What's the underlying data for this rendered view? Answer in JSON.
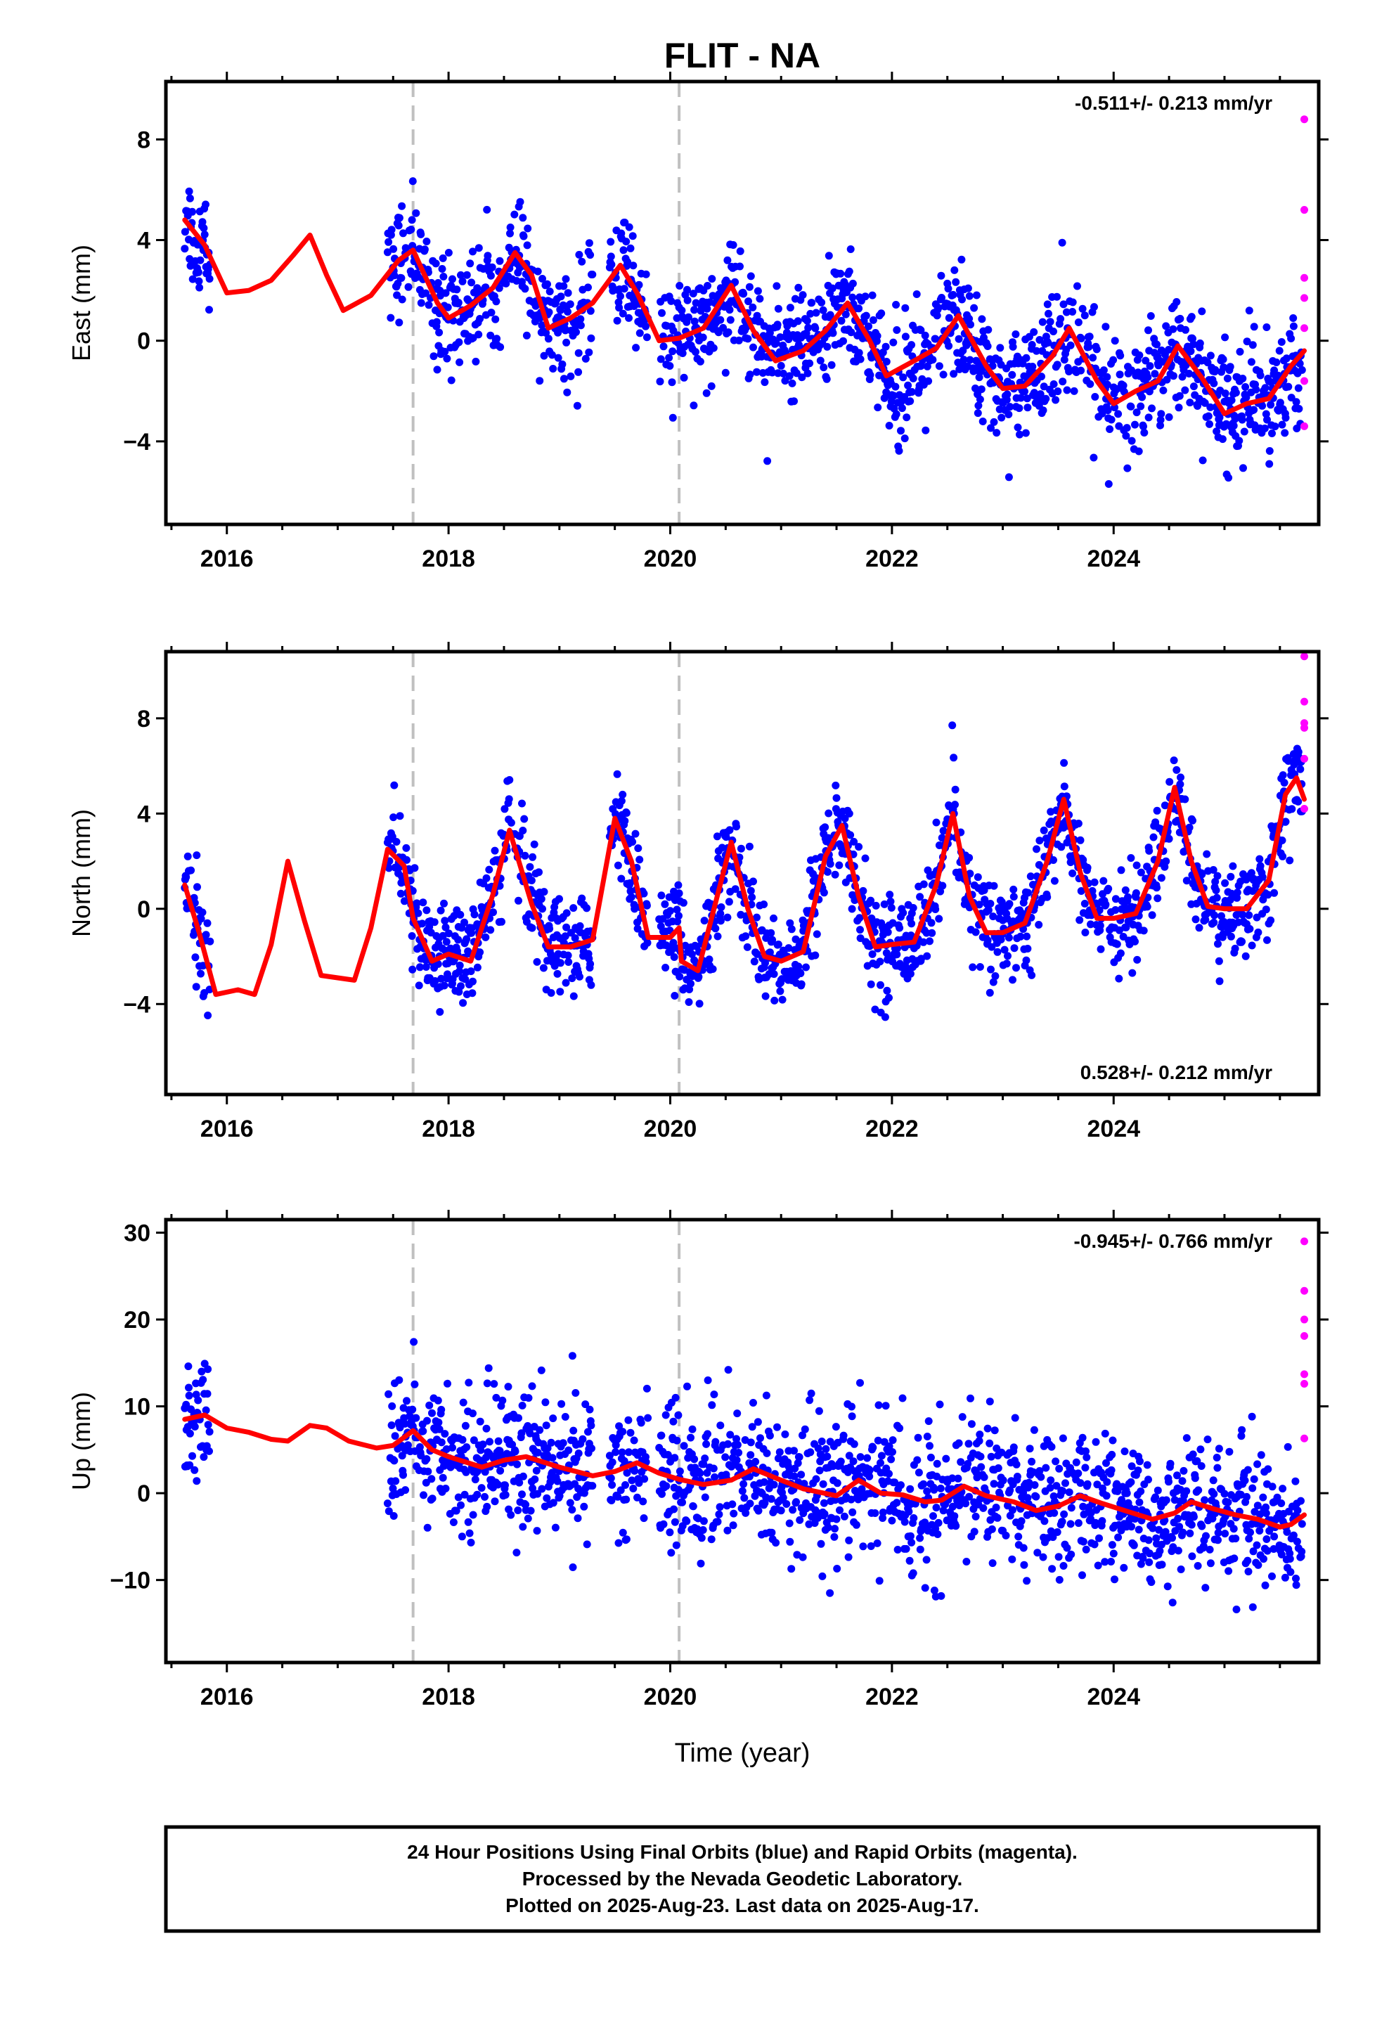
{
  "chart_data": {
    "type": "scatter",
    "title": "FLIT - NA",
    "xlabel": "Time (year)",
    "x_range": [
      2015.45,
      2025.85
    ],
    "x_ticks": [
      2016,
      2018,
      2020,
      2022,
      2024
    ],
    "x_tick_labels": [
      "2016",
      "2018",
      "2020",
      "2022",
      "2024"
    ],
    "vertical_reference_lines": [
      2017.68,
      2020.08
    ],
    "grid": false,
    "colors": {
      "final_orbits": "#0000ff",
      "rapid_orbits": "#ff00ff",
      "model": "#ff0000",
      "reference_lines": "#c0c0c0"
    },
    "panels": [
      {
        "key": "east",
        "ylabel": "East (mm)",
        "ylim": [
          -7.3,
          10.3
        ],
        "y_ticks": [
          -4,
          0,
          4,
          8
        ],
        "y_tick_labels": [
          "−4",
          "0",
          "4",
          "8"
        ],
        "rate_label": "-0.511+/- 0.213 mm/yr",
        "rate_position": "top-right",
        "series": [
          {
            "name": "Final Orbits (blue)",
            "style": "points"
          },
          {
            "name": "Rapid Orbits (magenta)",
            "style": "points",
            "points": [
              [
                2025.72,
                8.8
              ],
              [
                2025.72,
                5.2
              ],
              [
                2025.72,
                2.5
              ],
              [
                2025.72,
                1.7
              ],
              [
                2025.72,
                0.5
              ],
              [
                2025.72,
                -1.6
              ],
              [
                2025.72,
                -3.4
              ]
            ]
          },
          {
            "name": "model",
            "style": "line",
            "points": [
              [
                2015.62,
                4.8
              ],
              [
                2015.8,
                3.8
              ],
              [
                2016.0,
                1.9
              ],
              [
                2016.2,
                2.0
              ],
              [
                2016.4,
                2.4
              ],
              [
                2016.6,
                3.4
              ],
              [
                2016.75,
                4.2
              ],
              [
                2016.9,
                2.6
              ],
              [
                2017.05,
                1.2
              ],
              [
                2017.3,
                1.8
              ],
              [
                2017.55,
                3.2
              ],
              [
                2017.68,
                3.6
              ],
              [
                2017.9,
                1.5
              ],
              [
                2018.0,
                0.9
              ],
              [
                2018.2,
                1.4
              ],
              [
                2018.4,
                2.1
              ],
              [
                2018.6,
                3.5
              ],
              [
                2018.75,
                2.6
              ],
              [
                2018.9,
                0.5
              ],
              [
                2019.1,
                0.9
              ],
              [
                2019.3,
                1.5
              ],
              [
                2019.55,
                3.0
              ],
              [
                2019.7,
                1.9
              ],
              [
                2019.9,
                0.0
              ],
              [
                2020.08,
                0.1
              ],
              [
                2020.3,
                0.5
              ],
              [
                2020.55,
                2.2
              ],
              [
                2020.75,
                0.4
              ],
              [
                2020.95,
                -0.8
              ],
              [
                2021.2,
                -0.4
              ],
              [
                2021.4,
                0.4
              ],
              [
                2021.6,
                1.5
              ],
              [
                2021.8,
                0.0
              ],
              [
                2021.95,
                -1.4
              ],
              [
                2022.2,
                -0.8
              ],
              [
                2022.4,
                -0.3
              ],
              [
                2022.6,
                1.0
              ],
              [
                2022.85,
                -1.0
              ],
              [
                2023.0,
                -1.9
              ],
              [
                2023.2,
                -1.8
              ],
              [
                2023.45,
                -0.6
              ],
              [
                2023.6,
                0.5
              ],
              [
                2023.85,
                -1.6
              ],
              [
                2024.0,
                -2.5
              ],
              [
                2024.2,
                -2.0
              ],
              [
                2024.4,
                -1.6
              ],
              [
                2024.58,
                -0.2
              ],
              [
                2024.8,
                -1.5
              ],
              [
                2025.0,
                -2.9
              ],
              [
                2025.2,
                -2.5
              ],
              [
                2025.4,
                -2.3
              ],
              [
                2025.6,
                -1.0
              ],
              [
                2025.72,
                -0.4
              ]
            ]
          }
        ]
      },
      {
        "key": "north",
        "ylabel": "North (mm)",
        "ylim": [
          -7.8,
          10.8
        ],
        "y_ticks": [
          -4,
          0,
          4,
          8
        ],
        "y_tick_labels": [
          "−4",
          "0",
          "4",
          "8"
        ],
        "rate_label": "0.528+/- 0.212 mm/yr",
        "rate_position": "bottom-right",
        "series": [
          {
            "name": "Final Orbits (blue)",
            "style": "points"
          },
          {
            "name": "Rapid Orbits (magenta)",
            "style": "points",
            "points": [
              [
                2025.72,
                10.6
              ],
              [
                2025.72,
                8.7
              ],
              [
                2025.72,
                7.8
              ],
              [
                2025.72,
                7.6
              ],
              [
                2025.72,
                6.3
              ],
              [
                2025.72,
                4.2
              ]
            ]
          },
          {
            "name": "model",
            "style": "line",
            "points": [
              [
                2015.62,
                1.0
              ],
              [
                2015.75,
                -1.0
              ],
              [
                2015.9,
                -3.6
              ],
              [
                2016.1,
                -3.4
              ],
              [
                2016.25,
                -3.6
              ],
              [
                2016.4,
                -1.5
              ],
              [
                2016.55,
                2.0
              ],
              [
                2016.7,
                -0.5
              ],
              [
                2016.85,
                -2.8
              ],
              [
                2017.0,
                -2.9
              ],
              [
                2017.15,
                -3.0
              ],
              [
                2017.3,
                -0.8
              ],
              [
                2017.45,
                2.5
              ],
              [
                2017.6,
                1.8
              ],
              [
                2017.68,
                -0.4
              ],
              [
                2017.85,
                -2.2
              ],
              [
                2018.0,
                -1.9
              ],
              [
                2018.2,
                -2.2
              ],
              [
                2018.4,
                0.6
              ],
              [
                2018.55,
                3.3
              ],
              [
                2018.75,
                0.2
              ],
              [
                2018.9,
                -1.6
              ],
              [
                2019.1,
                -1.6
              ],
              [
                2019.3,
                -1.3
              ],
              [
                2019.5,
                3.8
              ],
              [
                2019.65,
                2.0
              ],
              [
                2019.8,
                -1.2
              ],
              [
                2020.0,
                -1.2
              ],
              [
                2020.08,
                -0.8
              ],
              [
                2020.1,
                -2.2
              ],
              [
                2020.25,
                -2.6
              ],
              [
                2020.45,
                1.0
              ],
              [
                2020.55,
                2.8
              ],
              [
                2020.7,
                0.0
              ],
              [
                2020.85,
                -2.0
              ],
              [
                2021.0,
                -2.2
              ],
              [
                2021.2,
                -1.8
              ],
              [
                2021.4,
                2.2
              ],
              [
                2021.55,
                3.5
              ],
              [
                2021.7,
                0.5
              ],
              [
                2021.85,
                -1.6
              ],
              [
                2022.0,
                -1.5
              ],
              [
                2022.2,
                -1.4
              ],
              [
                2022.4,
                1.0
              ],
              [
                2022.55,
                4.0
              ],
              [
                2022.7,
                0.5
              ],
              [
                2022.85,
                -1.0
              ],
              [
                2023.0,
                -1.0
              ],
              [
                2023.2,
                -0.6
              ],
              [
                2023.4,
                2.0
              ],
              [
                2023.55,
                4.6
              ],
              [
                2023.7,
                1.5
              ],
              [
                2023.85,
                -0.4
              ],
              [
                2024.0,
                -0.4
              ],
              [
                2024.2,
                -0.2
              ],
              [
                2024.4,
                2.0
              ],
              [
                2024.55,
                5.1
              ],
              [
                2024.7,
                2.0
              ],
              [
                2024.85,
                0.1
              ],
              [
                2025.0,
                0.0
              ],
              [
                2025.2,
                0.0
              ],
              [
                2025.4,
                1.2
              ],
              [
                2025.55,
                4.8
              ],
              [
                2025.65,
                5.5
              ],
              [
                2025.72,
                4.6
              ]
            ]
          }
        ]
      },
      {
        "key": "up",
        "ylabel": "Up (mm)",
        "ylim": [
          -19.5,
          31.5
        ],
        "y_ticks": [
          -10,
          0,
          10,
          20,
          30
        ],
        "y_tick_labels": [
          "−10",
          "0",
          "10",
          "20",
          "30"
        ],
        "rate_label": "-0.945+/- 0.766 mm/yr",
        "rate_position": "top-right",
        "series": [
          {
            "name": "Final Orbits (blue)",
            "style": "points"
          },
          {
            "name": "Rapid Orbits (magenta)",
            "style": "points",
            "points": [
              [
                2025.72,
                29.0
              ],
              [
                2025.72,
                23.3
              ],
              [
                2025.72,
                20.0
              ],
              [
                2025.72,
                18.1
              ],
              [
                2025.72,
                13.7
              ],
              [
                2025.72,
                12.6
              ],
              [
                2025.72,
                6.3
              ]
            ]
          },
          {
            "name": "model",
            "style": "line",
            "points": [
              [
                2015.62,
                8.5
              ],
              [
                2015.8,
                9.0
              ],
              [
                2016.0,
                7.5
              ],
              [
                2016.2,
                7.0
              ],
              [
                2016.4,
                6.2
              ],
              [
                2016.55,
                6.0
              ],
              [
                2016.75,
                7.8
              ],
              [
                2016.9,
                7.5
              ],
              [
                2017.1,
                6.0
              ],
              [
                2017.35,
                5.2
              ],
              [
                2017.5,
                5.5
              ],
              [
                2017.68,
                7.2
              ],
              [
                2017.85,
                5.0
              ],
              [
                2018.0,
                4.2
              ],
              [
                2018.3,
                3.0
              ],
              [
                2018.5,
                3.8
              ],
              [
                2018.7,
                4.2
              ],
              [
                2019.0,
                3.0
              ],
              [
                2019.3,
                2.0
              ],
              [
                2019.5,
                2.5
              ],
              [
                2019.7,
                3.5
              ],
              [
                2019.9,
                2.3
              ],
              [
                2020.08,
                1.6
              ],
              [
                2020.3,
                1.0
              ],
              [
                2020.55,
                1.5
              ],
              [
                2020.75,
                2.8
              ],
              [
                2021.0,
                1.5
              ],
              [
                2021.2,
                0.5
              ],
              [
                2021.5,
                -0.3
              ],
              [
                2021.7,
                1.5
              ],
              [
                2021.9,
                0.0
              ],
              [
                2022.1,
                -0.2
              ],
              [
                2022.3,
                -1.0
              ],
              [
                2022.45,
                -0.8
              ],
              [
                2022.65,
                0.8
              ],
              [
                2022.85,
                -0.3
              ],
              [
                2023.1,
                -1.0
              ],
              [
                2023.3,
                -2.0
              ],
              [
                2023.5,
                -1.5
              ],
              [
                2023.7,
                -0.3
              ],
              [
                2023.9,
                -1.2
              ],
              [
                2024.1,
                -2.0
              ],
              [
                2024.35,
                -3.0
              ],
              [
                2024.55,
                -2.3
              ],
              [
                2024.7,
                -1.0
              ],
              [
                2024.9,
                -1.8
              ],
              [
                2025.1,
                -2.5
              ],
              [
                2025.3,
                -3.0
              ],
              [
                2025.5,
                -3.9
              ],
              [
                2025.6,
                -3.6
              ],
              [
                2025.72,
                -2.5
              ]
            ]
          }
        ]
      }
    ]
  },
  "footer": {
    "line1": "24 Hour Positions Using Final Orbits (blue) and Rapid Orbits (magenta).",
    "line2": "Processed by the Nevada Geodetic Laboratory.",
    "line3": "Plotted on 2025-Aug-23. Last data on 2025-Aug-17."
  }
}
